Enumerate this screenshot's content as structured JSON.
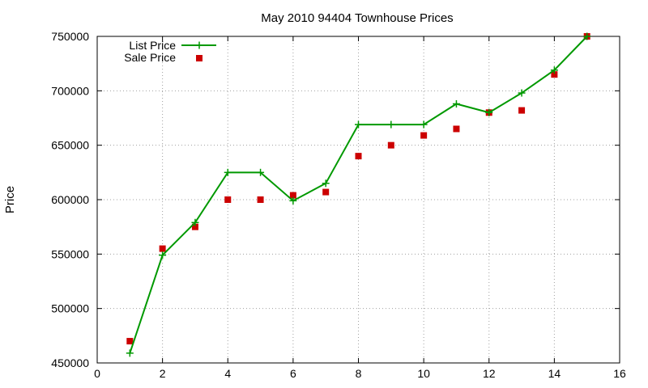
{
  "chart_data": {
    "type": "line",
    "title": "May 2010 94404 Townhouse Prices",
    "xlabel": "",
    "ylabel": "Price",
    "xlim": [
      0,
      16
    ],
    "ylim": [
      450000,
      750000
    ],
    "xticks": [
      0,
      2,
      4,
      6,
      8,
      10,
      12,
      14,
      16
    ],
    "yticks": [
      450000,
      500000,
      550000,
      600000,
      650000,
      700000,
      750000
    ],
    "grid": true,
    "legend_position": "top-left",
    "series": [
      {
        "name": "List Price",
        "style": "line-with-plus-markers",
        "color": "#009900",
        "x": [
          1,
          2,
          3,
          4,
          5,
          6,
          7,
          8,
          9,
          10,
          11,
          12,
          13,
          14,
          15
        ],
        "y": [
          459000,
          549000,
          579000,
          625000,
          625000,
          599000,
          615000,
          669000,
          669000,
          669000,
          688000,
          680000,
          698000,
          719000,
          750000
        ]
      },
      {
        "name": "Sale Price",
        "style": "square-markers",
        "color": "#cc0000",
        "x": [
          1,
          2,
          3,
          4,
          5,
          6,
          7,
          8,
          9,
          10,
          11,
          12,
          13,
          14,
          15
        ],
        "y": [
          470000,
          555000,
          575000,
          600000,
          600000,
          604000,
          607000,
          640000,
          650000,
          659000,
          665000,
          680000,
          682000,
          715000,
          750000
        ]
      }
    ]
  }
}
